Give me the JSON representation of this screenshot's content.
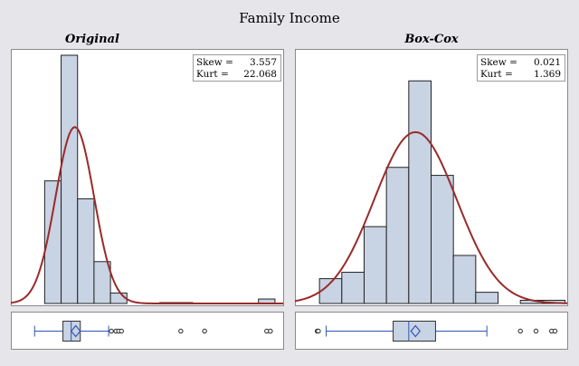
{
  "figure": {
    "title": "Family Income"
  },
  "chart_data": [
    {
      "type": "histogram",
      "panel_title": "Original",
      "stats": [
        {
          "label": "Skew =",
          "value": "3.557"
        },
        {
          "label": "Kurt =",
          "value": "22.068"
        }
      ],
      "x_range": [
        -0.3,
        14.6
      ],
      "y_range": [
        0,
        0.83
      ],
      "bins": [
        {
          "x0": 1.55,
          "x1": 2.45,
          "height": 0.41
        },
        {
          "x0": 2.45,
          "x1": 3.35,
          "height": 0.83
        },
        {
          "x0": 3.35,
          "x1": 4.25,
          "height": 0.35
        },
        {
          "x0": 4.25,
          "x1": 5.15,
          "height": 0.14
        },
        {
          "x0": 5.15,
          "x1": 6.05,
          "height": 0.035
        },
        {
          "x0": 6.05,
          "x1": 6.95,
          "height": 0.0
        },
        {
          "x0": 6.95,
          "x1": 7.85,
          "height": 0.0
        },
        {
          "x0": 7.85,
          "x1": 8.75,
          "height": 0.003
        },
        {
          "x0": 8.75,
          "x1": 9.65,
          "height": 0.003
        },
        {
          "x0": 9.65,
          "x1": 10.55,
          "height": 0.0
        },
        {
          "x0": 10.55,
          "x1": 11.45,
          "height": 0.0
        },
        {
          "x0": 11.45,
          "x1": 12.35,
          "height": 0.0
        },
        {
          "x0": 12.35,
          "x1": 13.25,
          "height": 0.0
        },
        {
          "x0": 13.25,
          "x1": 14.15,
          "height": 0.015
        }
      ],
      "density_curve": {
        "type": "normal",
        "mean": 3.2,
        "sd": 1.05,
        "peak": 0.59
      },
      "boxplot": {
        "whisker_low": 1.0,
        "q1": 2.55,
        "median": 3.0,
        "q3": 3.5,
        "mean": 3.25,
        "whisker_high": 5.05,
        "outliers": [
          5.2,
          5.45,
          5.6,
          5.75,
          9.0,
          10.3,
          13.7,
          13.9
        ]
      },
      "colors": {
        "bar_fill": "#c8d3e3",
        "curve": "#9a2a2a",
        "box_line": "#2f55b5"
      }
    },
    {
      "type": "histogram",
      "panel_title": "Box-Cox",
      "stats": [
        {
          "label": "Skew =",
          "value": "0.021"
        },
        {
          "label": "Kurt =",
          "value": "1.369"
        }
      ],
      "x_range": [
        0.9,
        13.1
      ],
      "y_range": [
        0,
        0.62
      ],
      "bins": [
        {
          "x0": 2.0,
          "x1": 3.0,
          "height": 0.062
        },
        {
          "x0": 3.0,
          "x1": 4.0,
          "height": 0.078
        },
        {
          "x0": 4.0,
          "x1": 5.0,
          "height": 0.192
        },
        {
          "x0": 5.0,
          "x1": 6.0,
          "height": 0.34
        },
        {
          "x0": 6.0,
          "x1": 7.0,
          "height": 0.556
        },
        {
          "x0": 7.0,
          "x1": 8.0,
          "height": 0.32
        },
        {
          "x0": 8.0,
          "x1": 9.0,
          "height": 0.12
        },
        {
          "x0": 9.0,
          "x1": 10.0,
          "height": 0.028
        },
        {
          "x0": 10.0,
          "x1": 11.0,
          "height": 0.0
        },
        {
          "x0": 11.0,
          "x1": 12.0,
          "height": 0.008
        },
        {
          "x0": 12.0,
          "x1": 13.0,
          "height": 0.008
        }
      ],
      "density_curve": {
        "type": "normal",
        "mean": 6.3,
        "sd": 1.85,
        "peak": 0.428
      },
      "boxplot": {
        "whisker_low": 2.3,
        "q1": 5.3,
        "median": 6.0,
        "q3": 7.2,
        "mean": 6.3,
        "whisker_high": 9.5,
        "outliers": [
          1.9,
          1.95,
          11.0,
          11.7,
          12.4,
          12.55
        ]
      },
      "colors": {
        "bar_fill": "#c8d3e3",
        "curve": "#9a2a2a",
        "box_line": "#2f55b5"
      }
    }
  ]
}
